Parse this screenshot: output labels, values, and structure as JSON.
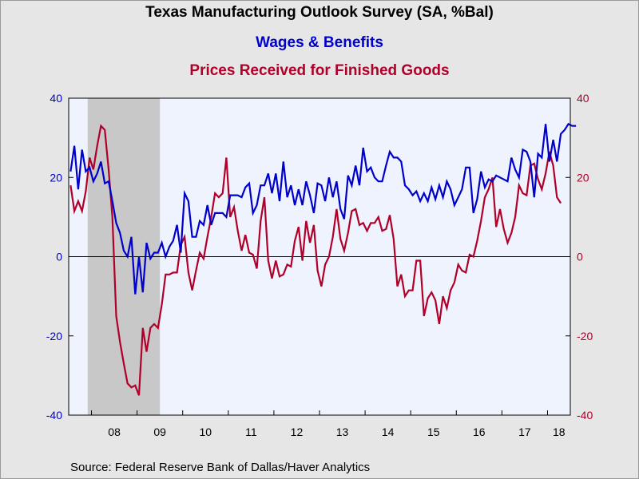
{
  "chart_data": {
    "type": "line",
    "title": "Texas Manufacturing Outlook Survey (SA, %Bal)",
    "source": "Source:  Federal Reserve Bank of Dallas/Haver Analytics",
    "x_start": "2007-07",
    "x_end": "2018-06",
    "x_ticks": [
      "08",
      "09",
      "10",
      "11",
      "12",
      "13",
      "14",
      "15",
      "16",
      "17",
      "18"
    ],
    "y_left_ticks": [
      "40",
      "20",
      "0",
      "-20",
      "-40"
    ],
    "y_right_ticks": [
      "40",
      "20",
      "0",
      "-20",
      "-40"
    ],
    "ylim": [
      -40,
      40
    ],
    "shaded_region": {
      "start": "2007-12",
      "end": "2009-06"
    },
    "colors": {
      "plot_bg": "#eef3fd",
      "recession": "#c8c8c8",
      "wages": "#0000cc",
      "prices": "#b0002a",
      "left_axis": "#0000cc",
      "right_axis": "#b0002a"
    },
    "series": [
      {
        "name": "Wages & Benefits",
        "axis": "left",
        "start": "2007-07",
        "values": [
          21.5,
          28,
          17,
          27,
          21.5,
          22.5,
          19,
          21,
          24,
          18.5,
          19,
          14,
          8.5,
          6,
          1.5,
          0,
          5,
          -9.5,
          0,
          -9,
          3.5,
          -0.5,
          1,
          1,
          3.5,
          0,
          2.5,
          4,
          8,
          1,
          16,
          14,
          5,
          5,
          9,
          8,
          13,
          8,
          11,
          11,
          11,
          10,
          15.5,
          15.5,
          15.5,
          15,
          17.5,
          18.5,
          11,
          13,
          18,
          18,
          21,
          16,
          21,
          14,
          24,
          15,
          18,
          13,
          17,
          13,
          19,
          15.5,
          11,
          18.5,
          18,
          14,
          20,
          15,
          19,
          12,
          9.5,
          20.5,
          18,
          23,
          18,
          27.5,
          21.5,
          22.5,
          20,
          19,
          19,
          23,
          26.5,
          25,
          25,
          24,
          18,
          17,
          15.5,
          16.5,
          14,
          16,
          14,
          17.5,
          14.5,
          18,
          15,
          19,
          17,
          13,
          15,
          17,
          22.5,
          22.5,
          11,
          14.5,
          21.5,
          17.5,
          19.5,
          19,
          20.5,
          20,
          19.5,
          19,
          25,
          22,
          20,
          27,
          26.5,
          24,
          15,
          26,
          25,
          33.5,
          24,
          29.5,
          24,
          31,
          32,
          33.5,
          33,
          33
        ]
      },
      {
        "name": "Prices Received for Finished Goods",
        "axis": "right",
        "start": "2007-07",
        "values": [
          18,
          11.5,
          14,
          11.5,
          16.5,
          25,
          22,
          28,
          33,
          32,
          22,
          10,
          -15,
          -21.5,
          -27,
          -32,
          -33,
          -32.5,
          -35,
          -18,
          -24,
          -18,
          -17,
          -18,
          -12,
          -4.5,
          -4.5,
          -4,
          -4,
          3,
          5,
          -4,
          -8.5,
          -3.5,
          1,
          -0.5,
          5,
          10,
          16,
          15,
          16,
          25,
          10,
          12.5,
          6.5,
          1.5,
          5.5,
          1,
          0.5,
          -3,
          9,
          15,
          -1,
          -5.5,
          -1,
          -5,
          -4.5,
          -2,
          -2.5,
          4,
          7.5,
          -1,
          9,
          3.5,
          8,
          -3.5,
          -7.5,
          -2,
          0,
          5,
          12,
          4.5,
          1.5,
          6,
          11.5,
          12,
          8,
          8.5,
          6.5,
          8.5,
          8.5,
          10,
          6.5,
          7,
          10.5,
          4.5,
          -7.5,
          -4.5,
          -10,
          -8.5,
          -8.5,
          -1,
          -1,
          -15,
          -10.5,
          -9,
          -11,
          -17,
          -10,
          -13,
          -8.5,
          -6.5,
          -2,
          -3.5,
          -4,
          0.5,
          0,
          4,
          9,
          15,
          17,
          20,
          7.5,
          12,
          7,
          3.5,
          6,
          10,
          18,
          16,
          15.5,
          23,
          23.5,
          19.5,
          17,
          21,
          26.5,
          23,
          15,
          13.5
        ]
      }
    ]
  },
  "header": {
    "title": "Texas Manufacturing Outlook Survey (SA, %Bal)",
    "series1_label": "Wages & Benefits",
    "series2_label": "Prices Received for Finished Goods"
  },
  "footer": {
    "source": "Source:  Federal Reserve Bank of Dallas/Haver Analytics"
  }
}
